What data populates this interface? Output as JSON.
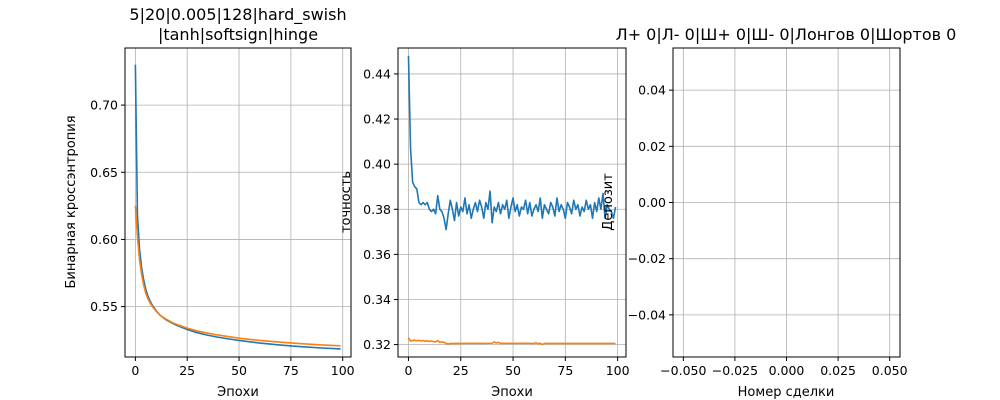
{
  "figure": {
    "background": "#ffffff"
  },
  "chart_data": [
    {
      "type": "line",
      "title_lines": [
        "5|20|0.005|128|hard_swish",
        "|tanh|softsign|hinge"
      ],
      "xlabel": "Эпохи",
      "ylabel": "Бинарная кроссэнтропия",
      "xlim": [
        -5,
        104
      ],
      "ylim": [
        0.5125,
        0.7425
      ],
      "xticks": [
        0,
        25,
        50,
        75,
        100
      ],
      "yticks": [
        0.55,
        0.6,
        0.65,
        0.7
      ],
      "ytick_labels": [
        "0.55",
        "0.60",
        "0.65",
        "0.70"
      ],
      "grid": true,
      "series": [
        {
          "color": "#1f77b4",
          "x": [
            0,
            1,
            2,
            3,
            4,
            5,
            6,
            7,
            8,
            10,
            12,
            15,
            18,
            20,
            25,
            30,
            35,
            40,
            50,
            60,
            70,
            80,
            90,
            99
          ],
          "y": [
            0.73,
            0.618,
            0.593,
            0.579,
            0.57,
            0.563,
            0.558,
            0.5545,
            0.5515,
            0.547,
            0.5435,
            0.54,
            0.5375,
            0.536,
            0.533,
            0.5305,
            0.5287,
            0.5272,
            0.5248,
            0.5229,
            0.5214,
            0.5202,
            0.5192,
            0.5185
          ]
        },
        {
          "color": "#ff7f0e",
          "x": [
            0,
            1,
            2,
            3,
            4,
            5,
            6,
            7,
            8,
            10,
            12,
            15,
            18,
            20,
            25,
            30,
            35,
            40,
            50,
            60,
            70,
            80,
            90,
            99
          ],
          "y": [
            0.625,
            0.602,
            0.585,
            0.574,
            0.566,
            0.56,
            0.556,
            0.553,
            0.5505,
            0.5465,
            0.5435,
            0.5405,
            0.538,
            0.5367,
            0.534,
            0.5318,
            0.5302,
            0.5288,
            0.5265,
            0.5248,
            0.5235,
            0.5224,
            0.5215,
            0.5208
          ]
        }
      ]
    },
    {
      "type": "line",
      "xlabel": "Эпохи",
      "ylabel": "точность",
      "xlim": [
        -5,
        104
      ],
      "ylim": [
        0.3145,
        0.4515
      ],
      "xticks": [
        0,
        25,
        50,
        75,
        100
      ],
      "yticks": [
        0.32,
        0.34,
        0.36,
        0.38,
        0.4,
        0.42,
        0.44
      ],
      "ytick_labels": [
        "0.32",
        "0.34",
        "0.36",
        "0.38",
        "0.40",
        "0.42",
        "0.44"
      ],
      "grid": true,
      "series": [
        {
          "color": "#1f77b4",
          "x": [
            0,
            1,
            2,
            3,
            4,
            5,
            6,
            7,
            8,
            9,
            10,
            11,
            12,
            13,
            14,
            15,
            16,
            17,
            18,
            19,
            20,
            21,
            22,
            23,
            24,
            25,
            26,
            27,
            28,
            29,
            30,
            31,
            32,
            33,
            34,
            35,
            36,
            37,
            38,
            39,
            40,
            41,
            42,
            43,
            44,
            45,
            46,
            47,
            48,
            49,
            50,
            51,
            52,
            53,
            54,
            55,
            56,
            57,
            58,
            59,
            60,
            61,
            62,
            63,
            64,
            65,
            66,
            67,
            68,
            69,
            70,
            71,
            72,
            73,
            74,
            75,
            76,
            77,
            78,
            79,
            80,
            81,
            82,
            83,
            84,
            85,
            86,
            87,
            88,
            89,
            90,
            91,
            92,
            93,
            94,
            95,
            96,
            97,
            98,
            99
          ],
          "y": [
            0.448,
            0.407,
            0.392,
            0.39,
            0.389,
            0.383,
            0.382,
            0.383,
            0.382,
            0.383,
            0.38,
            0.379,
            0.38,
            0.378,
            0.386,
            0.38,
            0.379,
            0.376,
            0.371,
            0.378,
            0.384,
            0.38,
            0.375,
            0.383,
            0.377,
            0.381,
            0.379,
            0.385,
            0.378,
            0.382,
            0.376,
            0.38,
            0.383,
            0.379,
            0.384,
            0.381,
            0.376,
            0.383,
            0.38,
            0.388,
            0.374,
            0.381,
            0.379,
            0.383,
            0.378,
            0.382,
            0.38,
            0.384,
            0.376,
            0.381,
            0.385,
            0.379,
            0.382,
            0.377,
            0.381,
            0.38,
            0.384,
            0.378,
            0.383,
            0.377,
            0.38,
            0.382,
            0.379,
            0.385,
            0.376,
            0.382,
            0.38,
            0.378,
            0.383,
            0.381,
            0.377,
            0.385,
            0.379,
            0.382,
            0.38,
            0.376,
            0.383,
            0.381,
            0.378,
            0.384,
            0.38,
            0.382,
            0.377,
            0.381,
            0.379,
            0.384,
            0.38,
            0.382,
            0.376,
            0.383,
            0.379,
            0.385,
            0.38,
            0.387,
            0.376,
            0.382,
            0.38,
            0.379,
            0.376,
            0.381
          ]
        },
        {
          "color": "#ff7f0e",
          "x": [
            0,
            1,
            2,
            3,
            4,
            5,
            6,
            7,
            8,
            9,
            10,
            11,
            12,
            13,
            14,
            15,
            16,
            17,
            18,
            19,
            20,
            25,
            30,
            35,
            40,
            41,
            42,
            43,
            44,
            45,
            50,
            55,
            60,
            61,
            62,
            63,
            64,
            65,
            70,
            75,
            80,
            85,
            90,
            95,
            99
          ],
          "y": [
            0.323,
            0.3215,
            0.3218,
            0.322,
            0.3217,
            0.3219,
            0.3216,
            0.3218,
            0.3215,
            0.3217,
            0.3214,
            0.3216,
            0.3213,
            0.3212,
            0.3218,
            0.321,
            0.3212,
            0.321,
            0.3205,
            0.3203,
            0.3205,
            0.3205,
            0.3206,
            0.3205,
            0.3206,
            0.3212,
            0.3207,
            0.321,
            0.3205,
            0.3206,
            0.3205,
            0.3206,
            0.3205,
            0.3208,
            0.3204,
            0.3206,
            0.32,
            0.3205,
            0.3205,
            0.3205,
            0.3205,
            0.3205,
            0.3205,
            0.3205,
            0.3205
          ]
        }
      ]
    },
    {
      "type": "line",
      "title_lines": [
        "Л+ 0|Л- 0|Ш+ 0|Ш- 0|Лонгов 0|Шортов 0"
      ],
      "xlabel": "Номер сделки",
      "ylabel": "Депозит",
      "xlim": [
        -0.055,
        0.055
      ],
      "ylim": [
        -0.055,
        0.055
      ],
      "xticks": [
        -0.05,
        -0.025,
        0.0,
        0.025,
        0.05
      ],
      "xtick_labels": [
        "−0.050",
        "−0.025",
        "0.000",
        "0.025",
        "0.050"
      ],
      "yticks": [
        -0.04,
        -0.02,
        0.0,
        0.02,
        0.04
      ],
      "ytick_labels": [
        "−0.04",
        "−0.02",
        "0.00",
        "0.02",
        "0.04"
      ],
      "grid": true,
      "series": []
    }
  ]
}
